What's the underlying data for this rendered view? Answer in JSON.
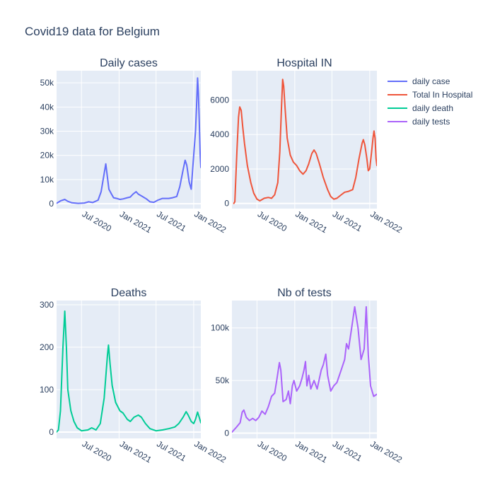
{
  "title": "Covid19 data for Belgium",
  "chart_data": [
    {
      "type": "line",
      "title": "Daily cases",
      "xlabel": "",
      "ylabel": "",
      "x_tick_labels": [
        "Jul 2020",
        "Jan 2021",
        "Jul 2021",
        "Jan 2022"
      ],
      "x_tick_dates": [
        "2020-07-01",
        "2021-01-01",
        "2021-07-01",
        "2022-01-01"
      ],
      "xlim": [
        "2020-03-01",
        "2022-02-05"
      ],
      "ylim": [
        -2000,
        55000
      ],
      "y_ticks": [
        0,
        10000,
        20000,
        30000,
        40000,
        50000
      ],
      "y_tick_labels": [
        "0",
        "10k",
        "20k",
        "30k",
        "40k",
        "50k"
      ],
      "grid": true,
      "series": [
        {
          "name": "daily case",
          "color": "#636efa",
          "points": [
            [
              "2020-03-01",
              200
            ],
            [
              "2020-03-20",
              1200
            ],
            [
              "2020-04-10",
              1800
            ],
            [
              "2020-04-25",
              1000
            ],
            [
              "2020-05-15",
              400
            ],
            [
              "2020-06-15",
              150
            ],
            [
              "2020-07-15",
              300
            ],
            [
              "2020-08-05",
              800
            ],
            [
              "2020-08-25",
              500
            ],
            [
              "2020-09-20",
              1500
            ],
            [
              "2020-10-05",
              5000
            ],
            [
              "2020-10-20",
              12500
            ],
            [
              "2020-10-28",
              16500
            ],
            [
              "2020-11-05",
              11000
            ],
            [
              "2020-11-12",
              6000
            ],
            [
              "2020-11-25",
              4000
            ],
            [
              "2020-12-05",
              2500
            ],
            [
              "2020-12-20",
              2200
            ],
            [
              "2021-01-05",
              1800
            ],
            [
              "2021-01-20",
              2000
            ],
            [
              "2021-02-10",
              2500
            ],
            [
              "2021-02-25",
              2800
            ],
            [
              "2021-03-10",
              4000
            ],
            [
              "2021-03-25",
              5000
            ],
            [
              "2021-04-05",
              4000
            ],
            [
              "2021-04-25",
              3000
            ],
            [
              "2021-05-15",
              2000
            ],
            [
              "2021-06-01",
              800
            ],
            [
              "2021-06-20",
              600
            ],
            [
              "2021-07-10",
              1500
            ],
            [
              "2021-08-01",
              2200
            ],
            [
              "2021-09-01",
              2200
            ],
            [
              "2021-09-20",
              2500
            ],
            [
              "2021-10-10",
              3000
            ],
            [
              "2021-10-25",
              7000
            ],
            [
              "2021-11-10",
              14000
            ],
            [
              "2021-11-20",
              18000
            ],
            [
              "2021-11-28",
              16000
            ],
            [
              "2021-12-10",
              9000
            ],
            [
              "2021-12-20",
              6000
            ],
            [
              "2022-01-01",
              20000
            ],
            [
              "2022-01-10",
              30000
            ],
            [
              "2022-01-15",
              40000
            ],
            [
              "2022-01-20",
              52000
            ],
            [
              "2022-01-24",
              46000
            ],
            [
              "2022-01-28",
              35000
            ],
            [
              "2022-02-02",
              20000
            ],
            [
              "2022-02-05",
              15000
            ]
          ]
        }
      ]
    },
    {
      "type": "line",
      "title": "Hospital IN",
      "xlabel": "",
      "ylabel": "",
      "x_tick_labels": [
        "Jul 2020",
        "Jan 2021",
        "Jul 2021",
        "Jan 2022"
      ],
      "x_tick_dates": [
        "2020-07-01",
        "2021-01-01",
        "2021-07-01",
        "2022-01-01"
      ],
      "xlim": [
        "2020-03-01",
        "2022-02-05"
      ],
      "ylim": [
        -300,
        7700
      ],
      "y_ticks": [
        0,
        2000,
        4000,
        6000
      ],
      "y_tick_labels": [
        "0",
        "2000",
        "4000",
        "6000"
      ],
      "grid": true,
      "series": [
        {
          "name": "Total In Hospital",
          "color": "#ef553b",
          "points": [
            [
              "2020-03-10",
              0
            ],
            [
              "2020-03-15",
              100
            ],
            [
              "2020-03-25",
              3000
            ],
            [
              "2020-04-02",
              5000
            ],
            [
              "2020-04-08",
              5600
            ],
            [
              "2020-04-15",
              5400
            ],
            [
              "2020-04-22",
              4500
            ],
            [
              "2020-05-01",
              3500
            ],
            [
              "2020-05-15",
              2200
            ],
            [
              "2020-06-01",
              1200
            ],
            [
              "2020-06-15",
              600
            ],
            [
              "2020-07-01",
              250
            ],
            [
              "2020-07-15",
              150
            ],
            [
              "2020-08-05",
              300
            ],
            [
              "2020-08-25",
              350
            ],
            [
              "2020-09-10",
              300
            ],
            [
              "2020-09-25",
              500
            ],
            [
              "2020-10-10",
              1200
            ],
            [
              "2020-10-20",
              3000
            ],
            [
              "2020-10-28",
              5500
            ],
            [
              "2020-11-03",
              7200
            ],
            [
              "2020-11-08",
              6800
            ],
            [
              "2020-11-15",
              5500
            ],
            [
              "2020-11-25",
              3800
            ],
            [
              "2020-12-10",
              2800
            ],
            [
              "2020-12-25",
              2400
            ],
            [
              "2021-01-10",
              2200
            ],
            [
              "2021-01-25",
              1900
            ],
            [
              "2021-02-10",
              1700
            ],
            [
              "2021-02-25",
              1900
            ],
            [
              "2021-03-10",
              2300
            ],
            [
              "2021-03-25",
              2900
            ],
            [
              "2021-04-05",
              3100
            ],
            [
              "2021-04-15",
              2900
            ],
            [
              "2021-05-01",
              2300
            ],
            [
              "2021-05-20",
              1500
            ],
            [
              "2021-06-10",
              800
            ],
            [
              "2021-06-25",
              400
            ],
            [
              "2021-07-10",
              250
            ],
            [
              "2021-07-25",
              300
            ],
            [
              "2021-08-15",
              500
            ],
            [
              "2021-09-01",
              650
            ],
            [
              "2021-09-20",
              700
            ],
            [
              "2021-10-10",
              800
            ],
            [
              "2021-10-25",
              1500
            ],
            [
              "2021-11-10",
              2600
            ],
            [
              "2021-11-25",
              3500
            ],
            [
              "2021-12-01",
              3700
            ],
            [
              "2021-12-08",
              3400
            ],
            [
              "2021-12-18",
              2600
            ],
            [
              "2021-12-25",
              1900
            ],
            [
              "2022-01-01",
              2000
            ],
            [
              "2022-01-10",
              3000
            ],
            [
              "2022-01-17",
              3800
            ],
            [
              "2022-01-22",
              4200
            ],
            [
              "2022-01-27",
              3800
            ],
            [
              "2022-02-01",
              2600
            ],
            [
              "2022-02-05",
              2200
            ]
          ]
        }
      ]
    },
    {
      "type": "line",
      "title": "Deaths",
      "xlabel": "",
      "ylabel": "",
      "x_tick_labels": [
        "Jul 2020",
        "Jan 2021",
        "Jul 2021",
        "Jan 2022"
      ],
      "x_tick_dates": [
        "2020-07-01",
        "2021-01-01",
        "2021-07-01",
        "2022-01-01"
      ],
      "xlim": [
        "2020-03-01",
        "2022-02-05"
      ],
      "ylim": [
        -15,
        310
      ],
      "y_ticks": [
        0,
        100,
        200,
        300
      ],
      "y_tick_labels": [
        "0",
        "100",
        "200",
        "300"
      ],
      "grid": true,
      "series": [
        {
          "name": "daily death",
          "color": "#00cc96",
          "points": [
            [
              "2020-03-01",
              0
            ],
            [
              "2020-03-10",
              5
            ],
            [
              "2020-03-20",
              50
            ],
            [
              "2020-04-01",
              200
            ],
            [
              "2020-04-10",
              285
            ],
            [
              "2020-04-18",
              200
            ],
            [
              "2020-04-25",
              100
            ],
            [
              "2020-05-10",
              50
            ],
            [
              "2020-05-25",
              25
            ],
            [
              "2020-06-10",
              10
            ],
            [
              "2020-07-01",
              3
            ],
            [
              "2020-08-01",
              5
            ],
            [
              "2020-08-20",
              10
            ],
            [
              "2020-09-10",
              5
            ],
            [
              "2020-10-01",
              20
            ],
            [
              "2020-10-20",
              80
            ],
            [
              "2020-11-05",
              180
            ],
            [
              "2020-11-10",
              205
            ],
            [
              "2020-11-18",
              160
            ],
            [
              "2020-11-28",
              110
            ],
            [
              "2020-12-15",
              70
            ],
            [
              "2021-01-05",
              50
            ],
            [
              "2021-01-20",
              45
            ],
            [
              "2021-02-10",
              30
            ],
            [
              "2021-02-25",
              25
            ],
            [
              "2021-03-15",
              35
            ],
            [
              "2021-04-05",
              40
            ],
            [
              "2021-04-20",
              35
            ],
            [
              "2021-05-10",
              20
            ],
            [
              "2021-06-01",
              8
            ],
            [
              "2021-07-01",
              3
            ],
            [
              "2021-08-01",
              5
            ],
            [
              "2021-09-01",
              8
            ],
            [
              "2021-10-01",
              12
            ],
            [
              "2021-10-20",
              20
            ],
            [
              "2021-11-10",
              35
            ],
            [
              "2021-11-25",
              48
            ],
            [
              "2021-12-05",
              40
            ],
            [
              "2021-12-20",
              25
            ],
            [
              "2022-01-01",
              20
            ],
            [
              "2022-01-10",
              30
            ],
            [
              "2022-01-20",
              47
            ],
            [
              "2022-01-28",
              35
            ],
            [
              "2022-02-05",
              22
            ]
          ]
        }
      ]
    },
    {
      "type": "line",
      "title": "Nb of tests",
      "xlabel": "",
      "ylabel": "",
      "x_tick_labels": [
        "Jul 2020",
        "Jan 2021",
        "Jul 2021",
        "Jan 2022"
      ],
      "x_tick_dates": [
        "2020-07-01",
        "2021-01-01",
        "2021-07-01",
        "2022-01-01"
      ],
      "xlim": [
        "2020-03-01",
        "2022-02-05"
      ],
      "ylim": [
        -5000,
        126000
      ],
      "y_ticks": [
        0,
        50000,
        100000
      ],
      "y_tick_labels": [
        "0",
        "50k",
        "100k"
      ],
      "grid": true,
      "series": [
        {
          "name": "daily tests",
          "color": "#ab63fa",
          "points": [
            [
              "2020-03-01",
              1000
            ],
            [
              "2020-03-20",
              5000
            ],
            [
              "2020-04-10",
              10000
            ],
            [
              "2020-04-20",
              20000
            ],
            [
              "2020-04-28",
              22000
            ],
            [
              "2020-05-10",
              15000
            ],
            [
              "2020-05-25",
              12000
            ],
            [
              "2020-06-10",
              14000
            ],
            [
              "2020-06-25",
              12000
            ],
            [
              "2020-07-10",
              15000
            ],
            [
              "2020-07-25",
              21000
            ],
            [
              "2020-08-10",
              18000
            ],
            [
              "2020-08-25",
              25000
            ],
            [
              "2020-09-10",
              35000
            ],
            [
              "2020-09-25",
              38000
            ],
            [
              "2020-10-05",
              50000
            ],
            [
              "2020-10-18",
              67000
            ],
            [
              "2020-10-25",
              60000
            ],
            [
              "2020-11-05",
              30000
            ],
            [
              "2020-11-20",
              32000
            ],
            [
              "2020-12-01",
              40000
            ],
            [
              "2020-12-10",
              28000
            ],
            [
              "2020-12-20",
              45000
            ],
            [
              "2020-12-28",
              50000
            ],
            [
              "2021-01-10",
              40000
            ],
            [
              "2021-01-25",
              45000
            ],
            [
              "2021-02-05",
              52000
            ],
            [
              "2021-02-15",
              60000
            ],
            [
              "2021-02-22",
              68000
            ],
            [
              "2021-03-01",
              45000
            ],
            [
              "2021-03-10",
              55000
            ],
            [
              "2021-03-20",
              42000
            ],
            [
              "2021-04-05",
              50000
            ],
            [
              "2021-04-20",
              42000
            ],
            [
              "2021-05-10",
              60000
            ],
            [
              "2021-05-20",
              65000
            ],
            [
              "2021-06-01",
              75000
            ],
            [
              "2021-06-10",
              55000
            ],
            [
              "2021-06-25",
              40000
            ],
            [
              "2021-07-10",
              45000
            ],
            [
              "2021-07-25",
              48000
            ],
            [
              "2021-08-15",
              60000
            ],
            [
              "2021-09-01",
              70000
            ],
            [
              "2021-09-10",
              85000
            ],
            [
              "2021-09-20",
              80000
            ],
            [
              "2021-10-05",
              100000
            ],
            [
              "2021-10-20",
              120000
            ],
            [
              "2021-11-05",
              100000
            ],
            [
              "2021-11-20",
              70000
            ],
            [
              "2021-12-05",
              80000
            ],
            [
              "2021-12-15",
              120000
            ],
            [
              "2021-12-25",
              75000
            ],
            [
              "2022-01-05",
              45000
            ],
            [
              "2022-01-20",
              35000
            ],
            [
              "2022-02-05",
              37000
            ]
          ]
        }
      ]
    }
  ],
  "legend": [
    {
      "name": "daily case",
      "color": "#636efa"
    },
    {
      "name": "Total In Hospital",
      "color": "#ef553b"
    },
    {
      "name": "daily death",
      "color": "#00cc96"
    },
    {
      "name": "daily tests",
      "color": "#ab63fa"
    }
  ]
}
